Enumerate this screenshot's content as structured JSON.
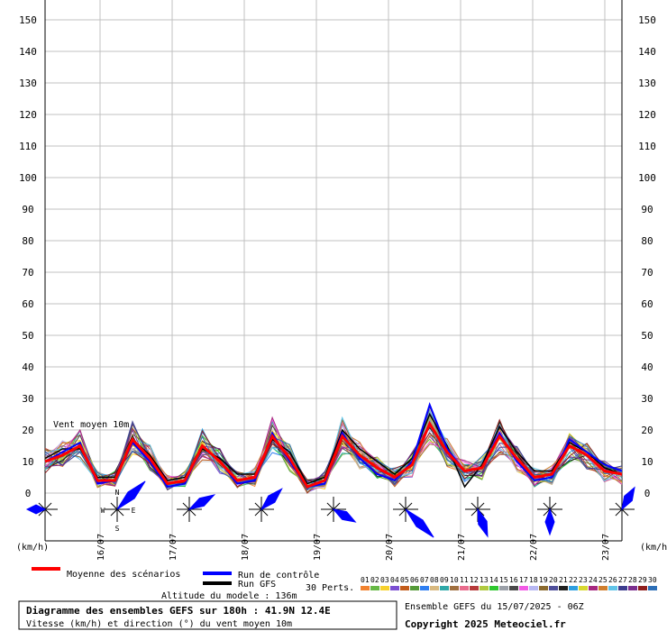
{
  "chart_data": {
    "type": "line",
    "x_dates": [
      "16/07",
      "17/07",
      "18/07",
      "19/07",
      "20/07",
      "21/07",
      "22/07",
      "23/07"
    ],
    "y_unit": "(km/h)",
    "y_ticks": [
      0,
      10,
      20,
      30,
      40,
      50,
      60,
      70,
      80,
      90,
      100,
      110,
      120,
      130,
      140,
      150
    ],
    "ylim": [
      0,
      150
    ],
    "inner_label": "Vent moyen 10m",
    "series_mean": {
      "name": "Moyenne des scénarios",
      "values": [
        10,
        12,
        15,
        4,
        4,
        17,
        11,
        3,
        4,
        15,
        10,
        4,
        5,
        18,
        11,
        2,
        4,
        18,
        12,
        8,
        5,
        9,
        22,
        13,
        7,
        8,
        18,
        11,
        5,
        6,
        15,
        12,
        7,
        6
      ]
    },
    "series_control": {
      "name": "Run de contrôle",
      "values": [
        10,
        13,
        16,
        3,
        4,
        16,
        10,
        2,
        3,
        15,
        10,
        3,
        4,
        19,
        10,
        2,
        3,
        19,
        11,
        6,
        4,
        10,
        28,
        14,
        7,
        8,
        19,
        10,
        4,
        5,
        17,
        13,
        9,
        7
      ]
    },
    "series_gfs": {
      "name": "Run GFS",
      "values": [
        11,
        14,
        14,
        5,
        5,
        17,
        12,
        4,
        5,
        14,
        11,
        6,
        6,
        17,
        13,
        3,
        5,
        20,
        14,
        10,
        6,
        11,
        25,
        15,
        2,
        9,
        21,
        13,
        7,
        7,
        16,
        13,
        8,
        6
      ]
    },
    "perturbation_count": 30,
    "perturbation_label": "30 Perts.",
    "member_ids": [
      "01",
      "02",
      "03",
      "04",
      "05",
      "06",
      "07",
      "08",
      "09",
      "10",
      "11",
      "12",
      "13",
      "14",
      "15",
      "16",
      "17",
      "18",
      "19",
      "20",
      "21",
      "22",
      "23",
      "24",
      "25",
      "26",
      "27",
      "28",
      "29",
      "30"
    ],
    "member_colors": [
      "#f2832f",
      "#67b946",
      "#f7d12d",
      "#7b4fd2",
      "#c25b1a",
      "#559a38",
      "#2f7ff2",
      "#d8b980",
      "#2fa8a8",
      "#a07040",
      "#e86b8c",
      "#b63a3a",
      "#b0c940",
      "#2fc72f",
      "#9ba0a8",
      "#4a4a4a",
      "#f25ae5",
      "#b7b7f2",
      "#8a6a2e",
      "#4f4f9a",
      "#1f1f1f",
      "#2f9fe0",
      "#d8d830",
      "#a6287f",
      "#cf7f2f",
      "#60c4e8",
      "#3c3c8e",
      "#7b2f8e",
      "#8e1e1e",
      "#2c6eb6"
    ],
    "direction_days": [
      {
        "dir_deg": 270,
        "len": 10
      },
      {
        "dir_deg": 45,
        "len": 22
      },
      {
        "dir_deg": 60,
        "len": 16
      },
      {
        "dir_deg": 45,
        "len": 16
      },
      {
        "dir_deg": 120,
        "len": 14
      },
      {
        "dir_deg": 135,
        "len": 22
      },
      {
        "dir_deg": 160,
        "len": 16
      },
      {
        "dir_deg": 180,
        "len": 14
      },
      {
        "dir_deg": 30,
        "len": 14
      }
    ],
    "compass_labels": {
      "n": "N",
      "w": "W",
      "e": "E",
      "s": "S"
    },
    "legend": {
      "mean": "Moyenne des scénarios",
      "control": "Run de contrôle",
      "gfs": "Run GFS",
      "altitude": "Altitude du modele : 136m"
    },
    "colors": {
      "mean": "#ff0000",
      "control": "#0000ff",
      "gfs": "#000000",
      "grid": "#c0c0c0",
      "arrows": "#0000ff"
    }
  },
  "footer": {
    "title": "Diagramme des ensembles GEFS sur 180h : 41.9N 12.4E",
    "subtitle": "Vitesse (km/h) et direction (°) du vent moyen 10m",
    "run_info": "Ensemble GEFS du 15/07/2025 - 06Z",
    "copyright": "Copyright 2025 Meteociel.fr"
  }
}
